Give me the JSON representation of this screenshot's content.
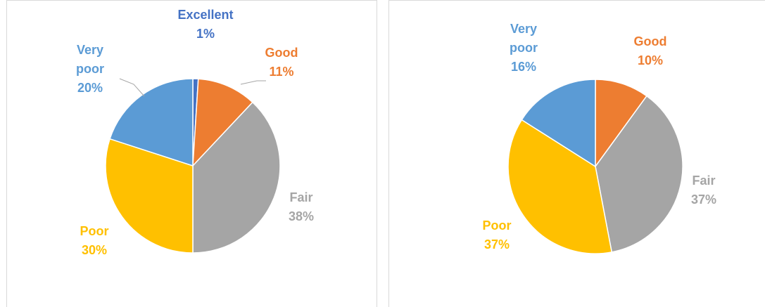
{
  "chart_data": [
    {
      "type": "pie",
      "categories": [
        "Excellent",
        "Good",
        "Fair",
        "Poor",
        "Very poor"
      ],
      "values": [
        1,
        11,
        38,
        30,
        20
      ],
      "value_labels": [
        "1%",
        "11%",
        "38%",
        "30%",
        "20%"
      ],
      "colors": [
        "#4472c4",
        "#ed7d31",
        "#a5a5a5",
        "#ffc000",
        "#5b9bd5"
      ]
    },
    {
      "type": "pie",
      "categories": [
        "Good",
        "Fair",
        "Poor",
        "Very poor"
      ],
      "values": [
        10,
        37,
        37,
        16
      ],
      "value_labels": [
        "10%",
        "37%",
        "37%",
        "16%"
      ],
      "colors": [
        "#ed7d31",
        "#a5a5a5",
        "#ffc000",
        "#5b9bd5"
      ]
    }
  ]
}
